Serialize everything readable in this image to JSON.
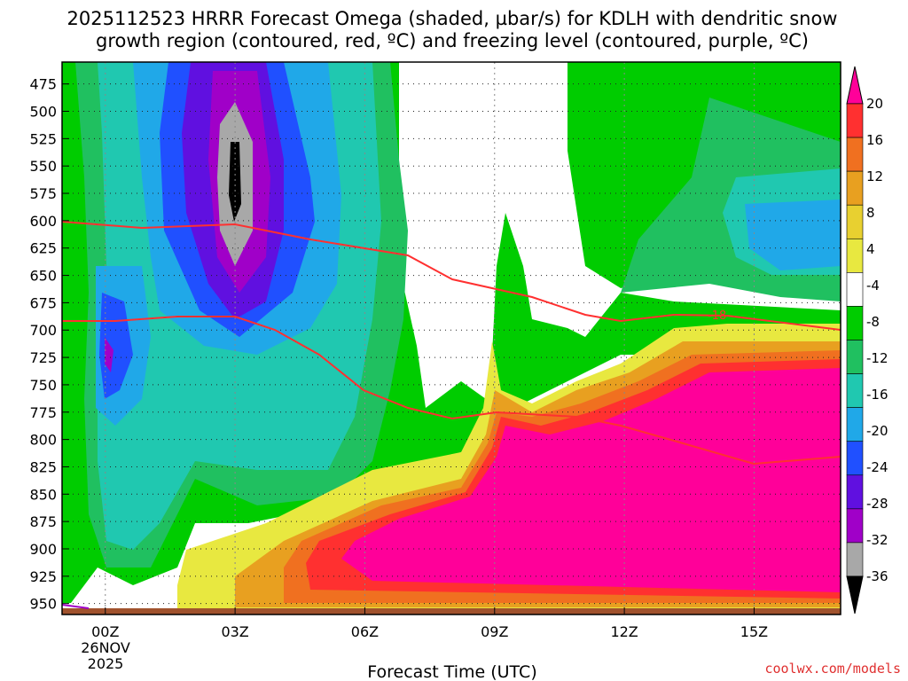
{
  "chart_data": {
    "type": "heatmap",
    "title_line1": "2025112523 HRRR Forecast Omega (shaded, µbar/s) for KDLH with dendritic snow",
    "title_line2": "growth region (contoured, red, ºC) and freezing level (contoured, purple, ºC)",
    "xlabel": "Forecast Time (UTC)",
    "x_ticks": [
      "00Z",
      "03Z",
      "06Z",
      "09Z",
      "12Z",
      "15Z"
    ],
    "x_tick_hours": [
      0,
      3,
      6,
      9,
      12,
      15
    ],
    "x_date_label": [
      "26NOV",
      "2025"
    ],
    "xlim": [
      -1,
      17
    ],
    "y_ticks": [
      475,
      500,
      525,
      550,
      575,
      600,
      625,
      650,
      675,
      700,
      725,
      750,
      775,
      800,
      825,
      850,
      875,
      900,
      925,
      950
    ],
    "ylim_pressure": [
      455,
      960
    ],
    "colorbar": {
      "labels": [
        "20",
        "16",
        "12",
        "8",
        "4",
        "-4",
        "-8",
        "-12",
        "-16",
        "-20",
        "-24",
        "-28",
        "-32",
        "-36"
      ],
      "colors": [
        "#ff0099",
        "#ff3030",
        "#f07020",
        "#e8a020",
        "#e8d030",
        "#e8e840",
        "#ffffff",
        "#00cc00",
        "#20c060",
        "#20c8b0",
        "#20a8e8",
        "#2050ff",
        "#6010e0",
        "#a000c8",
        "#a8a8a8",
        "#000000"
      ]
    },
    "contour_label": "-18",
    "credit": "coolwx.com/models"
  }
}
